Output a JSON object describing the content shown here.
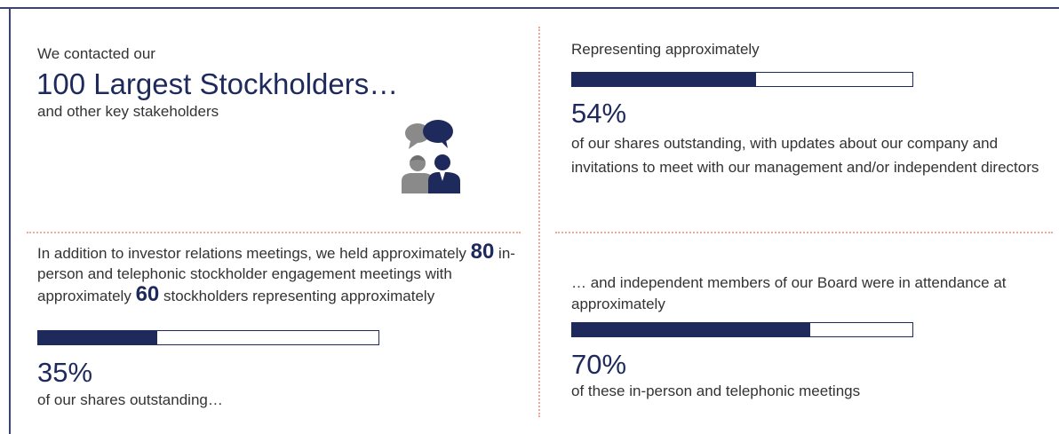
{
  "panels": [
    {
      "intro": "We contacted our",
      "headline": "100 Largest Stockholders…",
      "subtext": "and other key stakeholders"
    },
    {
      "lead": "Representing approximately",
      "percent": {
        "value": 54,
        "label": "54%"
      },
      "detail": "of our shares outstanding, with updates about our company and invitations to meet with our management and/or independent directors"
    },
    {
      "lead_parts": [
        "In addition to investor relations meetings, we held approximately ",
        "80",
        " in-person and telephonic stockholder engagement meetings with approximately ",
        "60",
        " stockholders representing approximately"
      ],
      "percent": {
        "value": 35,
        "label": "35%"
      },
      "detail": "of our shares outstanding…"
    },
    {
      "lead": "… and independent members of our Board were in attendance at approximately",
      "percent": {
        "value": 70,
        "label": "70%"
      },
      "detail": "of these in-person and telephonic meetings"
    }
  ]
}
